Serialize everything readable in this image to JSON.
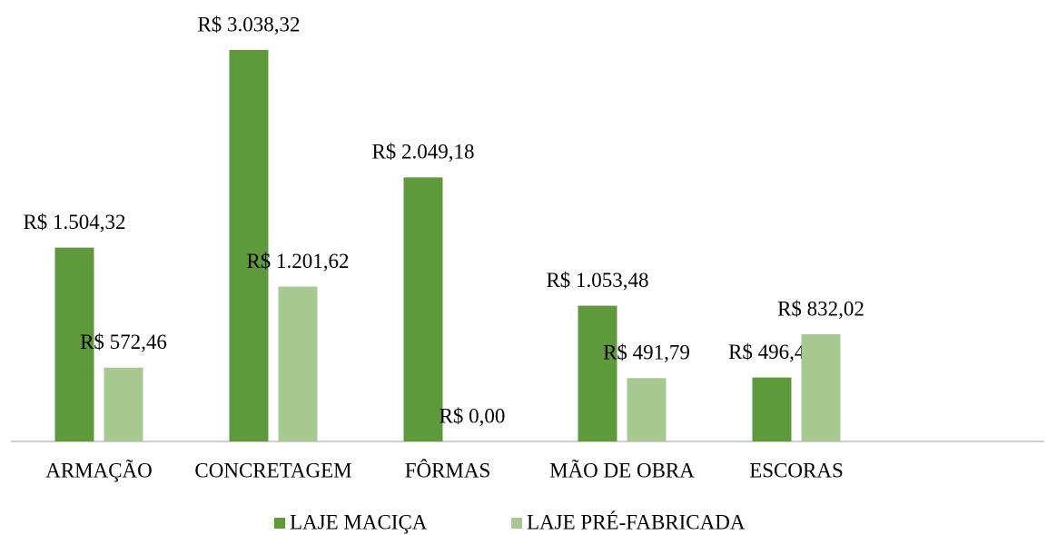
{
  "chart_data": {
    "type": "bar",
    "categories": [
      "ARMAÇÃO",
      "CONCRETAGEM",
      "FÔRMAS",
      "MÃO DE OBRA",
      "ESCORAS"
    ],
    "series": [
      {
        "name": "LAJE MACIÇA",
        "color": "#5e9a3b",
        "values": [
          1504.32,
          3038.32,
          2049.18,
          1053.48,
          496.44
        ],
        "value_labels": [
          "R$ 1.504,32",
          "R$ 3.038,32",
          "R$ 2.049,18",
          "R$ 1.053,48",
          "R$ 496,44"
        ]
      },
      {
        "name": "LAJE PRÉ-FABRICADA",
        "color": "#a7c991",
        "values": [
          572.46,
          1201.62,
          0,
          491.79,
          832.02
        ],
        "value_labels": [
          "R$ 572,46",
          "R$ 1.201,62",
          "R$ 0,00",
          "R$ 491,79",
          "R$ 832,02"
        ]
      }
    ],
    "legend": "bottom"
  }
}
